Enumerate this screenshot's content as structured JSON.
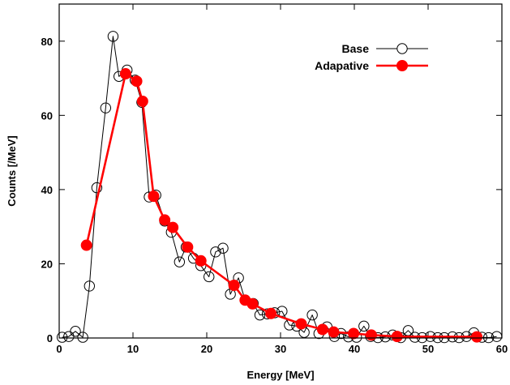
{
  "chart_data": {
    "type": "line",
    "xlabel": "Energy [MeV]",
    "ylabel": "Counts [/MeV]",
    "xlim": [
      0,
      60
    ],
    "ylim": [
      0,
      90
    ],
    "xticks": [
      0,
      10,
      20,
      30,
      40,
      50,
      60
    ],
    "yticks": [
      0,
      20,
      40,
      60,
      80
    ],
    "grid": false,
    "legend_position": "top-right",
    "series": [
      {
        "name": "Base",
        "color": "#000000",
        "marker": "open-circle",
        "x": [
          0.4,
          1.3,
          2.2,
          3.2,
          4.1,
          5.1,
          6.3,
          7.3,
          8.1,
          9.2,
          10.3,
          11.2,
          12.2,
          13.1,
          14.3,
          15.2,
          16.3,
          17.2,
          18.2,
          19.2,
          20.3,
          21.2,
          22.2,
          23.2,
          24.3,
          25.2,
          26.3,
          27.2,
          28.2,
          29.2,
          30.2,
          31.2,
          32.2,
          33.2,
          34.3,
          35.2,
          36.3,
          37.3,
          38.2,
          39.2,
          40.3,
          41.3,
          42.2,
          43.2,
          44.2,
          45.2,
          46.3,
          47.3,
          48.2,
          49.2,
          50.3,
          51.3,
          52.2,
          53.3,
          54.2,
          55.2,
          56.2,
          57.3,
          58.2,
          59.3
        ],
        "y": [
          0.2,
          0.4,
          1.8,
          0.2,
          14,
          40.5,
          62,
          81.3,
          70.5,
          72.2,
          69.5,
          63.5,
          38,
          38.5,
          31.5,
          28.5,
          20.5,
          24.5,
          21.5,
          19.5,
          16.5,
          23.2,
          24.2,
          11.8,
          16.2,
          10.2,
          9.3,
          6.2,
          6.5,
          6.8,
          7.2,
          3.5,
          3.2,
          1.5,
          6.2,
          1.2,
          3,
          0.4,
          1.2,
          0.3,
          0.2,
          3.2,
          0.4,
          0.1,
          0.3,
          0.8,
          0.1,
          2,
          0.2,
          0.1,
          0.4,
          0.1,
          0.1,
          0.3,
          0.1,
          0.4,
          1.4,
          0.2,
          0.1,
          0.4
        ]
      },
      {
        "name": "Adapative",
        "color": "#ff0000",
        "marker": "filled-circle",
        "x": [
          3.7,
          9.0,
          10.5,
          11.3,
          12.8,
          14.3,
          15.4,
          17.4,
          19.2,
          23.7,
          25.2,
          26.2,
          28.7,
          32.8,
          35.7,
          37.2,
          39.9,
          42.3,
          45.8,
          56.6
        ],
        "y": [
          25,
          71.2,
          69.2,
          63.8,
          38.2,
          31.8,
          29.8,
          24.5,
          20.8,
          14.2,
          10.2,
          9.2,
          6.6,
          3.8,
          2.3,
          1.6,
          1.2,
          0.8,
          0.4,
          0.3
        ]
      }
    ]
  }
}
